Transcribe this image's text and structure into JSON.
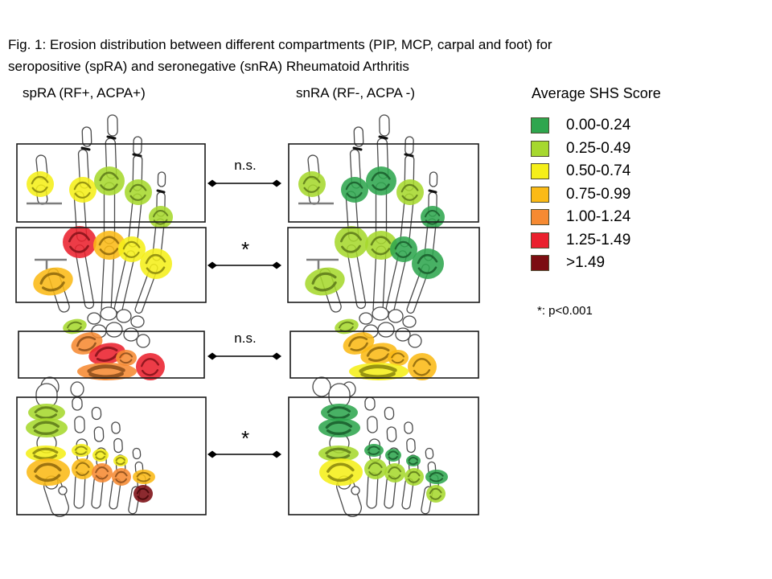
{
  "title": {
    "line1": "Fig. 1: Erosion distribution between different compartments (PIP, MCP, carpal and foot) for",
    "line2": "seropositive (spRA) and seronegative (snRA) Rheumatoid Arthritis"
  },
  "columns": [
    {
      "id": "spRA",
      "header": "spRA (RF+, ACPA+)"
    },
    {
      "id": "snRA",
      "header": "snRA (RF-, ACPA -)"
    }
  ],
  "legend": {
    "title": "Average SHS Score",
    "bins": [
      {
        "label": "0.00-0.24",
        "color": "#2fa64e"
      },
      {
        "label": "0.25-0.49",
        "color": "#a6d82e"
      },
      {
        "label": "0.50-0.74",
        "color": "#f5ef19"
      },
      {
        "label": "0.75-0.99",
        "color": "#fbba16"
      },
      {
        "label": "1.00-1.24",
        "color": "#f68a32"
      },
      {
        "label": "1.25-1.49",
        "color": "#ea212e"
      },
      {
        "label": ">1.49",
        "color": "#7c0d12"
      }
    ],
    "footnote": "*: p<0.001"
  },
  "comparisons": [
    {
      "region": "PIP",
      "label": "n.s."
    },
    {
      "region": "MCP",
      "label": "*"
    },
    {
      "region": "carpal",
      "label": "n.s."
    },
    {
      "region": "foot",
      "label": "*"
    }
  ],
  "chart_data": {
    "type": "anatomical-heatmap",
    "value_name": "Average SHS Score",
    "groups": [
      "spRA (RF+, ACPA+)",
      "snRA (RF-, ACPA -)"
    ],
    "regions": [
      "PIP",
      "MCP",
      "carpal",
      "foot"
    ],
    "significance": {
      "PIP": "n.s.",
      "MCP": "*",
      "carpal": "n.s.",
      "foot": "*"
    },
    "panels": [
      {
        "column": "spRA",
        "region": "PIP",
        "joints": {
          "thumb-ip": "0.50-0.74",
          "index-pip": "0.50-0.74",
          "middle-pip": "0.25-0.49",
          "ring-pip": "0.25-0.49",
          "little-pip": "0.25-0.49"
        }
      },
      {
        "column": "spRA",
        "region": "MCP",
        "joints": {
          "thumb-mcp": "0.75-0.99",
          "index-mcp": "1.25-1.49",
          "middle-mcp": "0.75-0.99",
          "ring-mcp": "0.50-0.74",
          "little-mcp": "0.50-0.74"
        }
      },
      {
        "column": "spRA",
        "region": "carpal",
        "joints": {
          "carpal-a": "0.25-0.49",
          "carpal-b": "1.00-1.24",
          "carpal-c": "1.25-1.49",
          "carpal-d": "1.00-1.24",
          "carpal-e": "1.00-1.24",
          "carpal-f": "1.25-1.49"
        }
      },
      {
        "column": "spRA",
        "region": "foot",
        "joints": {
          "bigtoe-ip-a": "0.25-0.49",
          "bigtoe-ip-b": "0.25-0.49",
          "bigtoe-mtp-a": "0.50-0.74",
          "bigtoe-mtp-b": "0.75-0.99",
          "toe2-mtp-a": "0.50-0.74",
          "toe2-mtp-b": "0.75-0.99",
          "toe3-mtp-a": "0.50-0.74",
          "toe3-mtp-b": "1.00-1.24",
          "toe4-mtp-a": "0.50-0.74",
          "toe4-mtp-b": "1.00-1.24",
          "toe5-mtp-a": "0.75-0.99",
          "toe5-mtp-b": ">1.49"
        }
      },
      {
        "column": "snRA",
        "region": "PIP",
        "joints": {
          "thumb-ip": "0.25-0.49",
          "index-pip": "0.00-0.24",
          "middle-pip": "0.00-0.24",
          "ring-pip": "0.25-0.49",
          "little-pip": "0.00-0.24"
        }
      },
      {
        "column": "snRA",
        "region": "MCP",
        "joints": {
          "thumb-mcp": "0.25-0.49",
          "index-mcp": "0.25-0.49",
          "middle-mcp": "0.25-0.49",
          "ring-mcp": "0.00-0.24",
          "little-mcp": "0.00-0.24"
        }
      },
      {
        "column": "snRA",
        "region": "carpal",
        "joints": {
          "carpal-a": "0.25-0.49",
          "carpal-b": "0.75-0.99",
          "carpal-c": "0.75-0.99",
          "carpal-d": "0.75-0.99",
          "carpal-e": "0.50-0.74",
          "carpal-f": "0.75-0.99"
        }
      },
      {
        "column": "snRA",
        "region": "foot",
        "joints": {
          "bigtoe-ip-a": "0.00-0.24",
          "bigtoe-ip-b": "0.00-0.24",
          "bigtoe-mtp-a": "0.25-0.49",
          "bigtoe-mtp-b": "0.50-0.74",
          "toe2-mtp-a": "0.00-0.24",
          "toe2-mtp-b": "0.25-0.49",
          "toe3-mtp-a": "0.00-0.24",
          "toe3-mtp-b": "0.25-0.49",
          "toe4-mtp-a": "0.00-0.24",
          "toe4-mtp-b": "0.25-0.49",
          "toe5-mtp-a": "0.00-0.24",
          "toe5-mtp-b": "0.25-0.49"
        }
      }
    ]
  }
}
